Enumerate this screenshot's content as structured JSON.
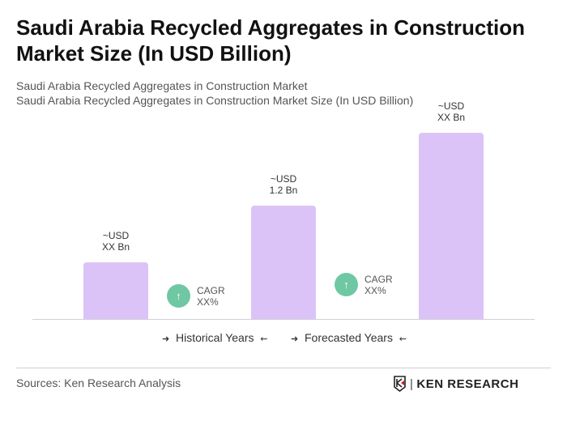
{
  "title": "Saudi Arabia Recycled Aggregates in Construction Market Size (In USD Billion)",
  "subtitle1": "Saudi Arabia Recycled Aggregates in Construction Market",
  "subtitle2": "Saudi Arabia Recycled Aggregates in Construction Market Size (In USD Billion)",
  "chart_data": {
    "type": "bar",
    "values": [
      0.6,
      1.2,
      1.97
    ],
    "data_labels": [
      {
        "line1": "~USD",
        "line2": "XX Bn"
      },
      {
        "line1": "~USD",
        "line2": "1.2 Bn"
      },
      {
        "line1": "~USD",
        "line2": "XX Bn"
      }
    ],
    "cagr": [
      {
        "label": "CAGR",
        "value": "XX%"
      },
      {
        "label": "CAGR",
        "value": "XX%"
      }
    ],
    "legend": [
      "Historical Years",
      "Forecasted Years"
    ],
    "bar_color": "#dcc3f7",
    "cagr_color": "#6fc8a3",
    "grid": false
  },
  "icons": {
    "cagr": "arrow-up-icon",
    "legend_left": "arrow-right-icon",
    "legend_right": "arrow-left-icon"
  },
  "footer": {
    "source": "Sources: Ken Research Analysis",
    "logo": "KEN RESEARCH"
  }
}
